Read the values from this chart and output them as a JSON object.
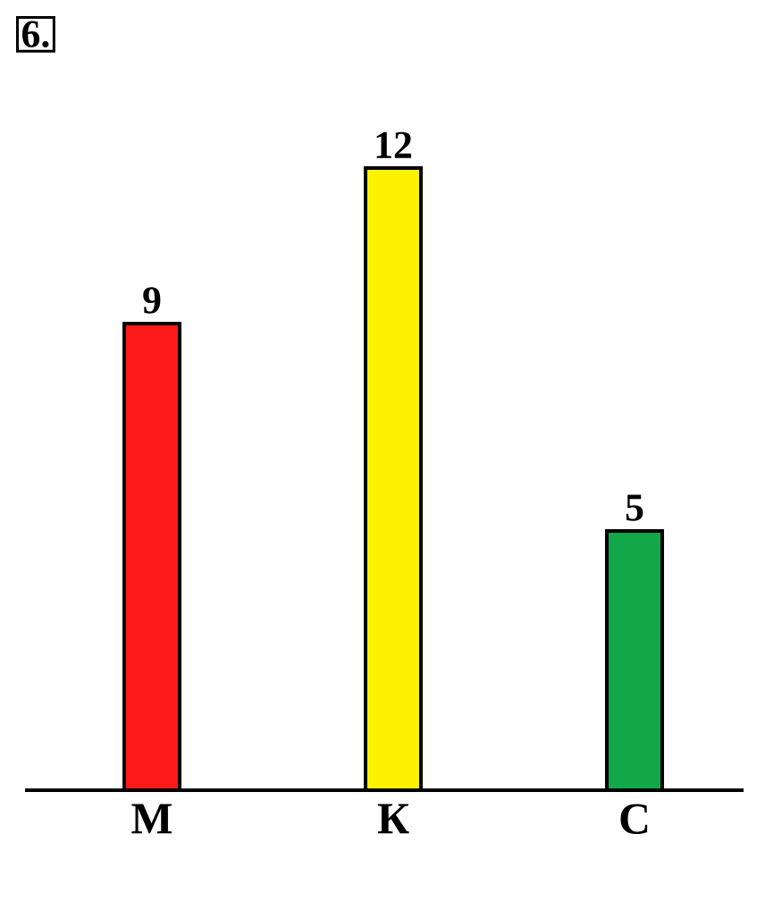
{
  "chart_data": {
    "type": "bar",
    "title": "6.",
    "categories": [
      "М",
      "К",
      "С"
    ],
    "values": [
      9,
      12,
      5
    ],
    "colors": [
      "#ff1a1a",
      "#fff200",
      "#12a84a"
    ],
    "data_labels": true
  }
}
